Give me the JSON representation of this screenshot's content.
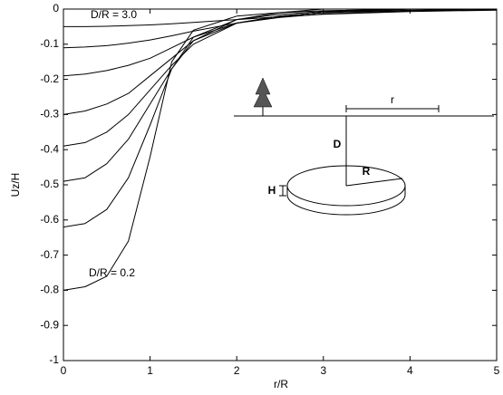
{
  "chart_data": {
    "type": "line",
    "xlabel": "r/R",
    "ylabel": "Uz/H",
    "x": [
      0,
      0.25,
      0.5,
      0.75,
      1,
      1.25,
      1.5,
      2,
      2.5,
      3,
      4,
      5
    ],
    "series": [
      {
        "color": "#000000",
        "values": [
          -0.8,
          -0.79,
          -0.76,
          -0.66,
          -0.42,
          -0.15,
          -0.06,
          -0.02,
          -0.01,
          0,
          0,
          0
        ]
      },
      {
        "color": "#000000",
        "values": [
          -0.62,
          -0.61,
          -0.57,
          -0.48,
          -0.33,
          -0.17,
          -0.08,
          -0.03,
          -0.01,
          -0.005,
          0,
          0
        ]
      },
      {
        "color": "#000000",
        "values": [
          -0.49,
          -0.48,
          -0.44,
          -0.37,
          -0.27,
          -0.17,
          -0.09,
          -0.03,
          -0.015,
          -0.007,
          0,
          0
        ]
      },
      {
        "color": "#000000",
        "values": [
          -0.39,
          -0.38,
          -0.35,
          -0.3,
          -0.23,
          -0.16,
          -0.1,
          -0.04,
          -0.02,
          -0.01,
          0,
          0
        ]
      },
      {
        "color": "#000000",
        "values": [
          -0.3,
          -0.29,
          -0.27,
          -0.24,
          -0.19,
          -0.14,
          -0.09,
          -0.04,
          -0.02,
          -0.01,
          0,
          0
        ]
      },
      {
        "color": "#000000",
        "values": [
          -0.19,
          -0.185,
          -0.175,
          -0.16,
          -0.14,
          -0.11,
          -0.08,
          -0.04,
          -0.02,
          -0.01,
          -0.003,
          0
        ]
      },
      {
        "color": "#000000",
        "values": [
          -0.11,
          -0.108,
          -0.104,
          -0.097,
          -0.088,
          -0.076,
          -0.063,
          -0.04,
          -0.024,
          -0.014,
          -0.005,
          -0.002
        ]
      },
      {
        "color": "#000000",
        "values": [
          -0.05,
          -0.05,
          -0.049,
          -0.047,
          -0.045,
          -0.042,
          -0.038,
          -0.03,
          -0.022,
          -0.015,
          -0.007,
          -0.003
        ]
      }
    ],
    "xlim": [
      0,
      5
    ],
    "xticks": [
      0,
      1,
      2,
      3,
      4,
      5
    ],
    "ylim": [
      -1,
      0
    ],
    "yticks": [
      -1,
      -0.9,
      -0.8,
      -0.7,
      -0.6,
      -0.5,
      -0.4,
      -0.3,
      -0.2,
      -0.1,
      0
    ],
    "annotations": [
      "D/R = 3.0",
      "D/R = 0.2"
    ],
    "inset": {
      "r": "r",
      "D": "D",
      "R": "R",
      "H": "H"
    }
  }
}
